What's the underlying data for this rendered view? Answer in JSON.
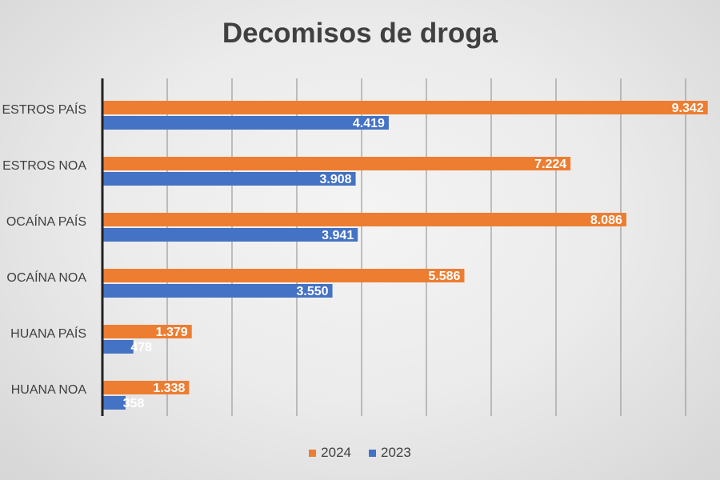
{
  "chart_data": {
    "type": "bar",
    "orientation": "horizontal",
    "title": "Decomisos de droga",
    "categories": [
      "ESTROS PAÍS",
      "ESTROS NOA",
      "OCAÍNA PAÍS",
      "OCAÍNA NOA",
      "HUANA PAÍS",
      "HUANA NOA"
    ],
    "series": [
      {
        "name": "2024",
        "color": "#ED7D31",
        "values": [
          9342,
          7224,
          8086,
          5586,
          1379,
          1338
        ],
        "labels": [
          "9.342",
          "7.224",
          "8.086",
          "5.586",
          "1.379",
          "1.338"
        ]
      },
      {
        "name": "2023",
        "color": "#4472C4",
        "values": [
          4419,
          3908,
          3941,
          3550,
          478,
          358
        ],
        "labels": [
          "4.419",
          "3.908",
          "3.941",
          "3.550",
          "478",
          "358"
        ]
      }
    ],
    "xlim": [
      0,
      9000
    ],
    "grid": true,
    "legend": "bottom"
  }
}
